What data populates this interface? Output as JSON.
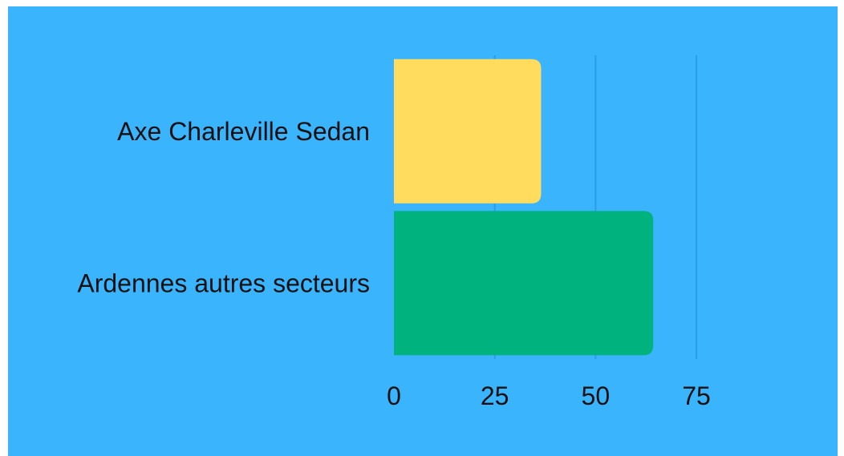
{
  "chart_data": {
    "type": "bar",
    "orientation": "horizontal",
    "categories": [
      "Axe Charleville Sedan",
      "Ardennes autres secteurs"
    ],
    "values": [
      36.5,
      64.3
    ],
    "colors": [
      "#ffdc5e",
      "#00b37e"
    ],
    "xlim": [
      0,
      75
    ],
    "xticks": [
      0,
      25,
      50,
      75
    ],
    "xtick_labels": [
      "0",
      "25",
      "50",
      "75"
    ],
    "grid": true,
    "background": "#3bb4fe",
    "title": "",
    "xlabel": "",
    "ylabel": ""
  }
}
